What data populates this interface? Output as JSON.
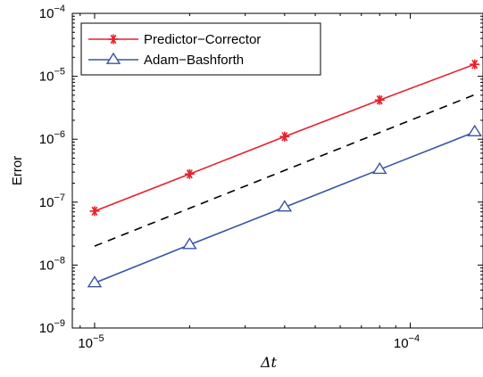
{
  "chart_data": {
    "type": "line",
    "xscale": "log",
    "yscale": "log",
    "xlabel": "Δt",
    "ylabel": "Error",
    "xlim": [
      8.5e-06,
      0.00017
    ],
    "ylim": [
      1e-09,
      0.0001
    ],
    "x_ticks": [
      {
        "value": 1e-05,
        "base": "10",
        "exp": "−5"
      },
      {
        "value": 0.0001,
        "base": "10",
        "exp": "−4"
      }
    ],
    "y_ticks": [
      {
        "value": 1e-09,
        "base": "10",
        "exp": "−9"
      },
      {
        "value": 1e-08,
        "base": "10",
        "exp": "−8"
      },
      {
        "value": 1e-07,
        "base": "10",
        "exp": "−7"
      },
      {
        "value": 1e-06,
        "base": "10",
        "exp": "−6"
      },
      {
        "value": 1e-05,
        "base": "10",
        "exp": "−5"
      },
      {
        "value": 0.0001,
        "base": "10",
        "exp": "−4"
      }
    ],
    "series": [
      {
        "name": "Predictor−Corrector",
        "color": "#e8202a",
        "marker": "asterisk",
        "x": [
          1e-05,
          2e-05,
          4e-05,
          8e-05,
          0.00016
        ],
        "y": [
          7.2e-08,
          2.8e-07,
          1.1e-06,
          4.2e-06,
          1.55e-05
        ]
      },
      {
        "name": "Adam−Bashforth",
        "color": "#3a53a4",
        "marker": "triangle",
        "x": [
          1e-05,
          2e-05,
          4e-05,
          8e-05,
          0.00016
        ],
        "y": [
          5.2e-09,
          2.1e-08,
          8.3e-08,
          3.3e-07,
          1.3e-06
        ]
      },
      {
        "color": "#000000",
        "style": "dashed",
        "marker": "none",
        "x": [
          1e-05,
          0.00016
        ],
        "y": [
          2e-08,
          5.1e-06
        ]
      }
    ],
    "legend": {
      "placement": "top-left"
    }
  }
}
